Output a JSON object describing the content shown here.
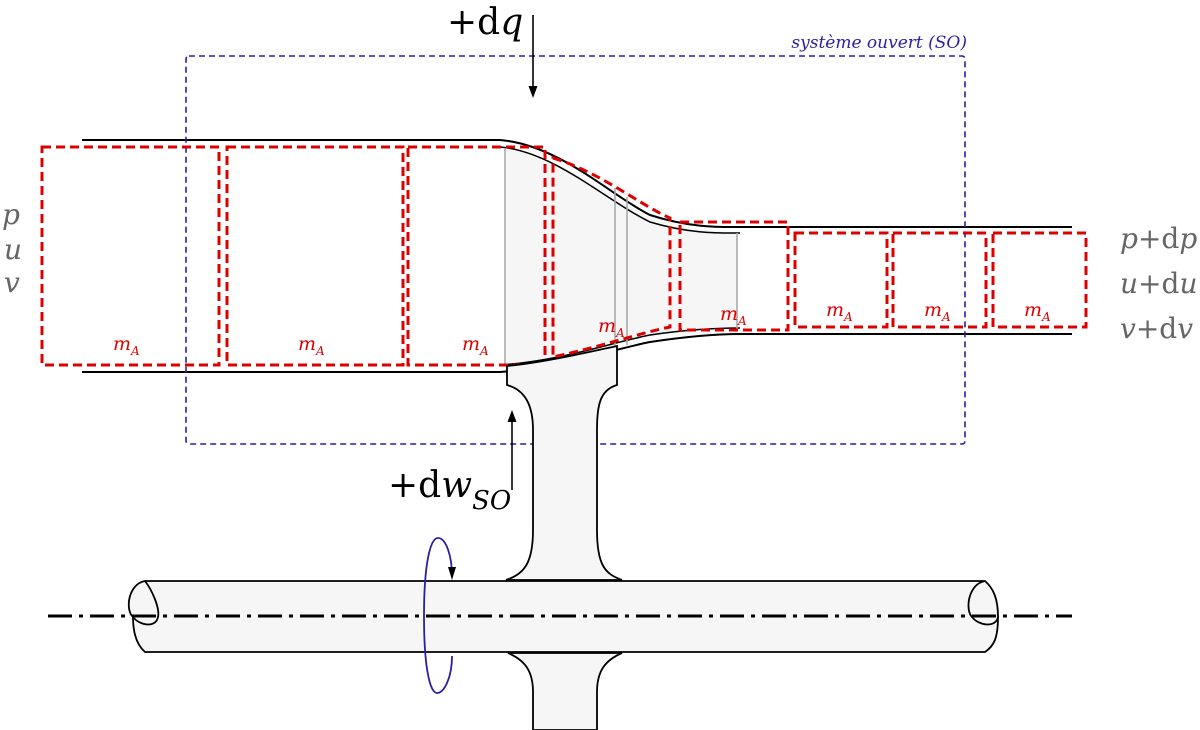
{
  "labels": {
    "heat_sign": "+d",
    "heat_var": "q",
    "work_sign": "+d",
    "work_var": "w",
    "work_sub": "SO",
    "system": "système ouvert (SO)",
    "mass": "m",
    "mass_sub": "A"
  },
  "inlet": {
    "p": "p",
    "u": "u",
    "v": "v"
  },
  "outlet": {
    "p_var": "p",
    "p_incr": "+d",
    "p_var2": "p",
    "u_var": "u",
    "u_incr": "+d",
    "u_var2": "u",
    "v_var": "v",
    "v_incr": "+d",
    "v_var2": "v"
  },
  "colors": {
    "mass_box": "#dd0000",
    "system_box": "#2a1fa0",
    "state_text": "#666666",
    "fill": "#f6f6f6",
    "ink": "#000000"
  }
}
